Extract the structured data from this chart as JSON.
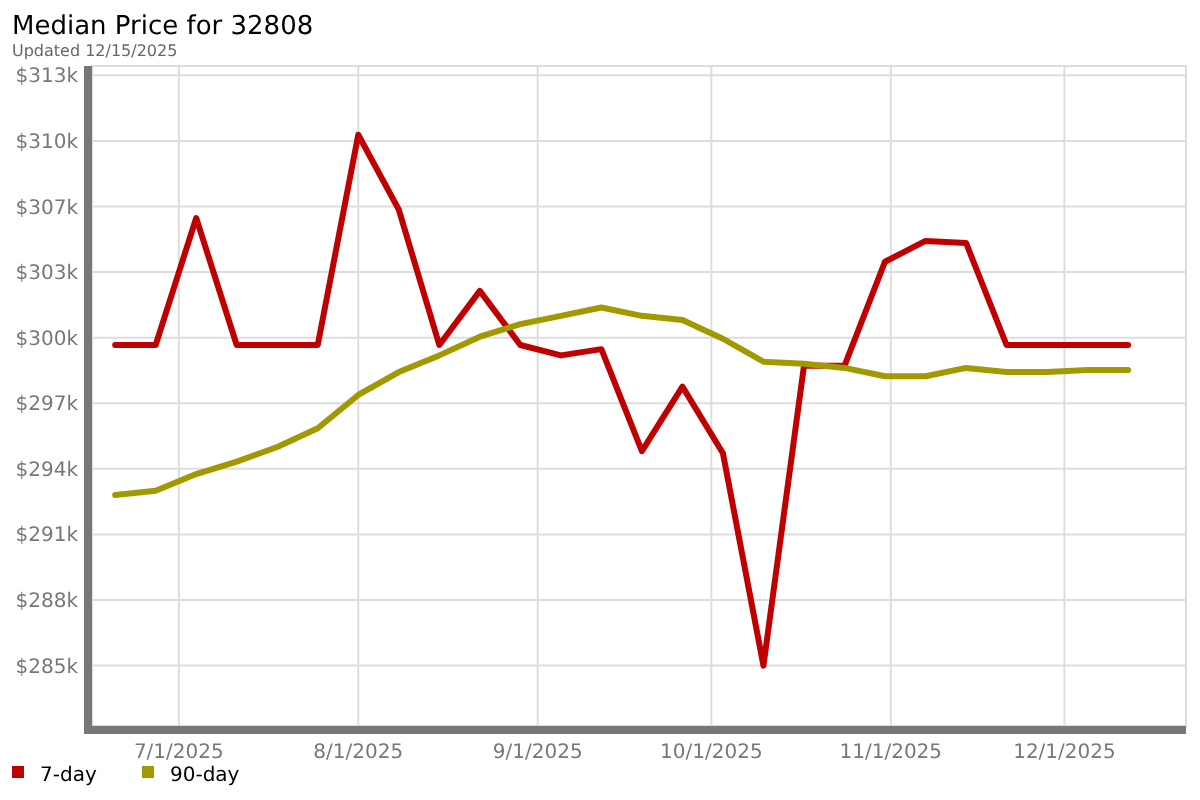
{
  "chart_data": {
    "type": "line",
    "title": "Median Price for 32808",
    "subtitle": "Updated 12/15/2025",
    "x": [
      "2025-06-20",
      "2025-06-27",
      "2025-07-04",
      "2025-07-11",
      "2025-07-18",
      "2025-07-25",
      "2025-08-01",
      "2025-08-08",
      "2025-08-15",
      "2025-08-22",
      "2025-08-29",
      "2025-09-05",
      "2025-09-12",
      "2025-09-19",
      "2025-09-26",
      "2025-10-03",
      "2025-10-10",
      "2025-10-17",
      "2025-10-24",
      "2025-10-31",
      "2025-11-07",
      "2025-11-14",
      "2025-11-21",
      "2025-11-28",
      "2025-12-05",
      "2025-12-12"
    ],
    "series": [
      {
        "name": "7-day",
        "color": "#c00000",
        "values": [
          299.9,
          299.9,
          306.0,
          299.9,
          299.9,
          299.9,
          310.0,
          306.4,
          299.9,
          302.5,
          299.9,
          299.4,
          299.7,
          294.8,
          297.9,
          294.7,
          284.5,
          298.9,
          298.9,
          303.9,
          304.9,
          304.8,
          299.9,
          299.9,
          299.9,
          299.9
        ]
      },
      {
        "name": "90-day",
        "color": "#a09a00",
        "values": [
          292.7,
          292.9,
          293.7,
          294.3,
          295.0,
          295.9,
          297.5,
          298.6,
          299.4,
          300.3,
          300.9,
          301.3,
          301.7,
          301.3,
          301.1,
          300.2,
          299.1,
          299.0,
          298.8,
          298.4,
          298.4,
          298.8,
          298.6,
          298.6,
          298.7,
          298.7
        ]
      }
    ],
    "xlim": [
      "2025-06-16",
      "2025-12-22"
    ],
    "xticks": [
      {
        "value": "2025-07-01",
        "label": "7/1/2025"
      },
      {
        "value": "2025-08-01",
        "label": "8/1/2025"
      },
      {
        "value": "2025-09-01",
        "label": "9/1/2025"
      },
      {
        "value": "2025-10-01",
        "label": "10/1/2025"
      },
      {
        "value": "2025-11-01",
        "label": "11/1/2025"
      },
      {
        "value": "2025-12-01",
        "label": "12/1/2025"
      }
    ],
    "ylim": [
      281.6,
      313.3
    ],
    "yticks": [
      {
        "value": 284.5,
        "label": "$285k"
      },
      {
        "value": 287.65,
        "label": "$288k"
      },
      {
        "value": 290.8,
        "label": "$291k"
      },
      {
        "value": 293.95,
        "label": "$294k"
      },
      {
        "value": 297.1,
        "label": "$297k"
      },
      {
        "value": 300.25,
        "label": "$300k"
      },
      {
        "value": 303.4,
        "label": "$303k"
      },
      {
        "value": 306.55,
        "label": "$307k"
      },
      {
        "value": 309.7,
        "label": "$310k"
      },
      {
        "value": 312.85,
        "label": "$313k"
      }
    ],
    "grid": true,
    "legend": "bottom left",
    "marker": "none",
    "line_style": "solid"
  }
}
